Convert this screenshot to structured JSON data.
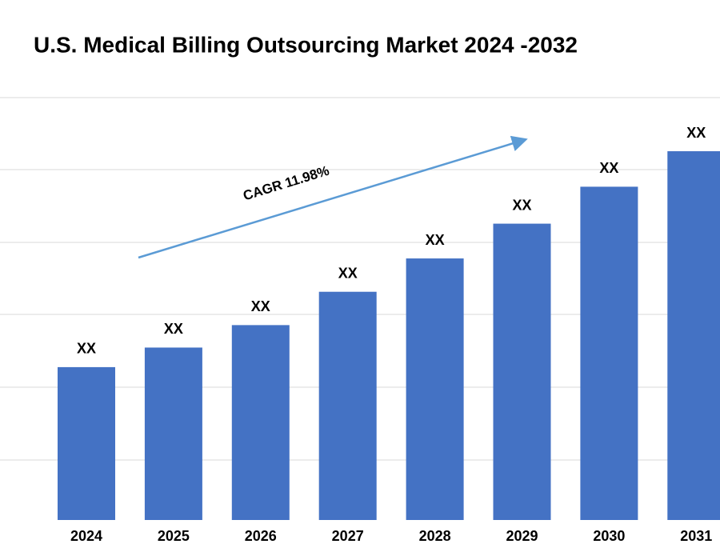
{
  "chart_data": {
    "type": "bar",
    "title": "U.S. Medical Billing Outsourcing Market 2024 -2032",
    "annotation": "CAGR 11.98%",
    "categories": [
      "2024",
      "2025",
      "2026",
      "2027",
      "2028",
      "2029",
      "2030",
      "2031"
    ],
    "values": [
      2.11,
      2.38,
      2.69,
      3.15,
      3.61,
      4.09,
      4.6,
      5.09
    ],
    "value_labels": [
      "XX",
      "XX",
      "XX",
      "XX",
      "XX",
      "XX",
      "XX",
      "XX"
    ],
    "color": "#4472c4",
    "ylim": [
      0,
      5.83
    ]
  }
}
